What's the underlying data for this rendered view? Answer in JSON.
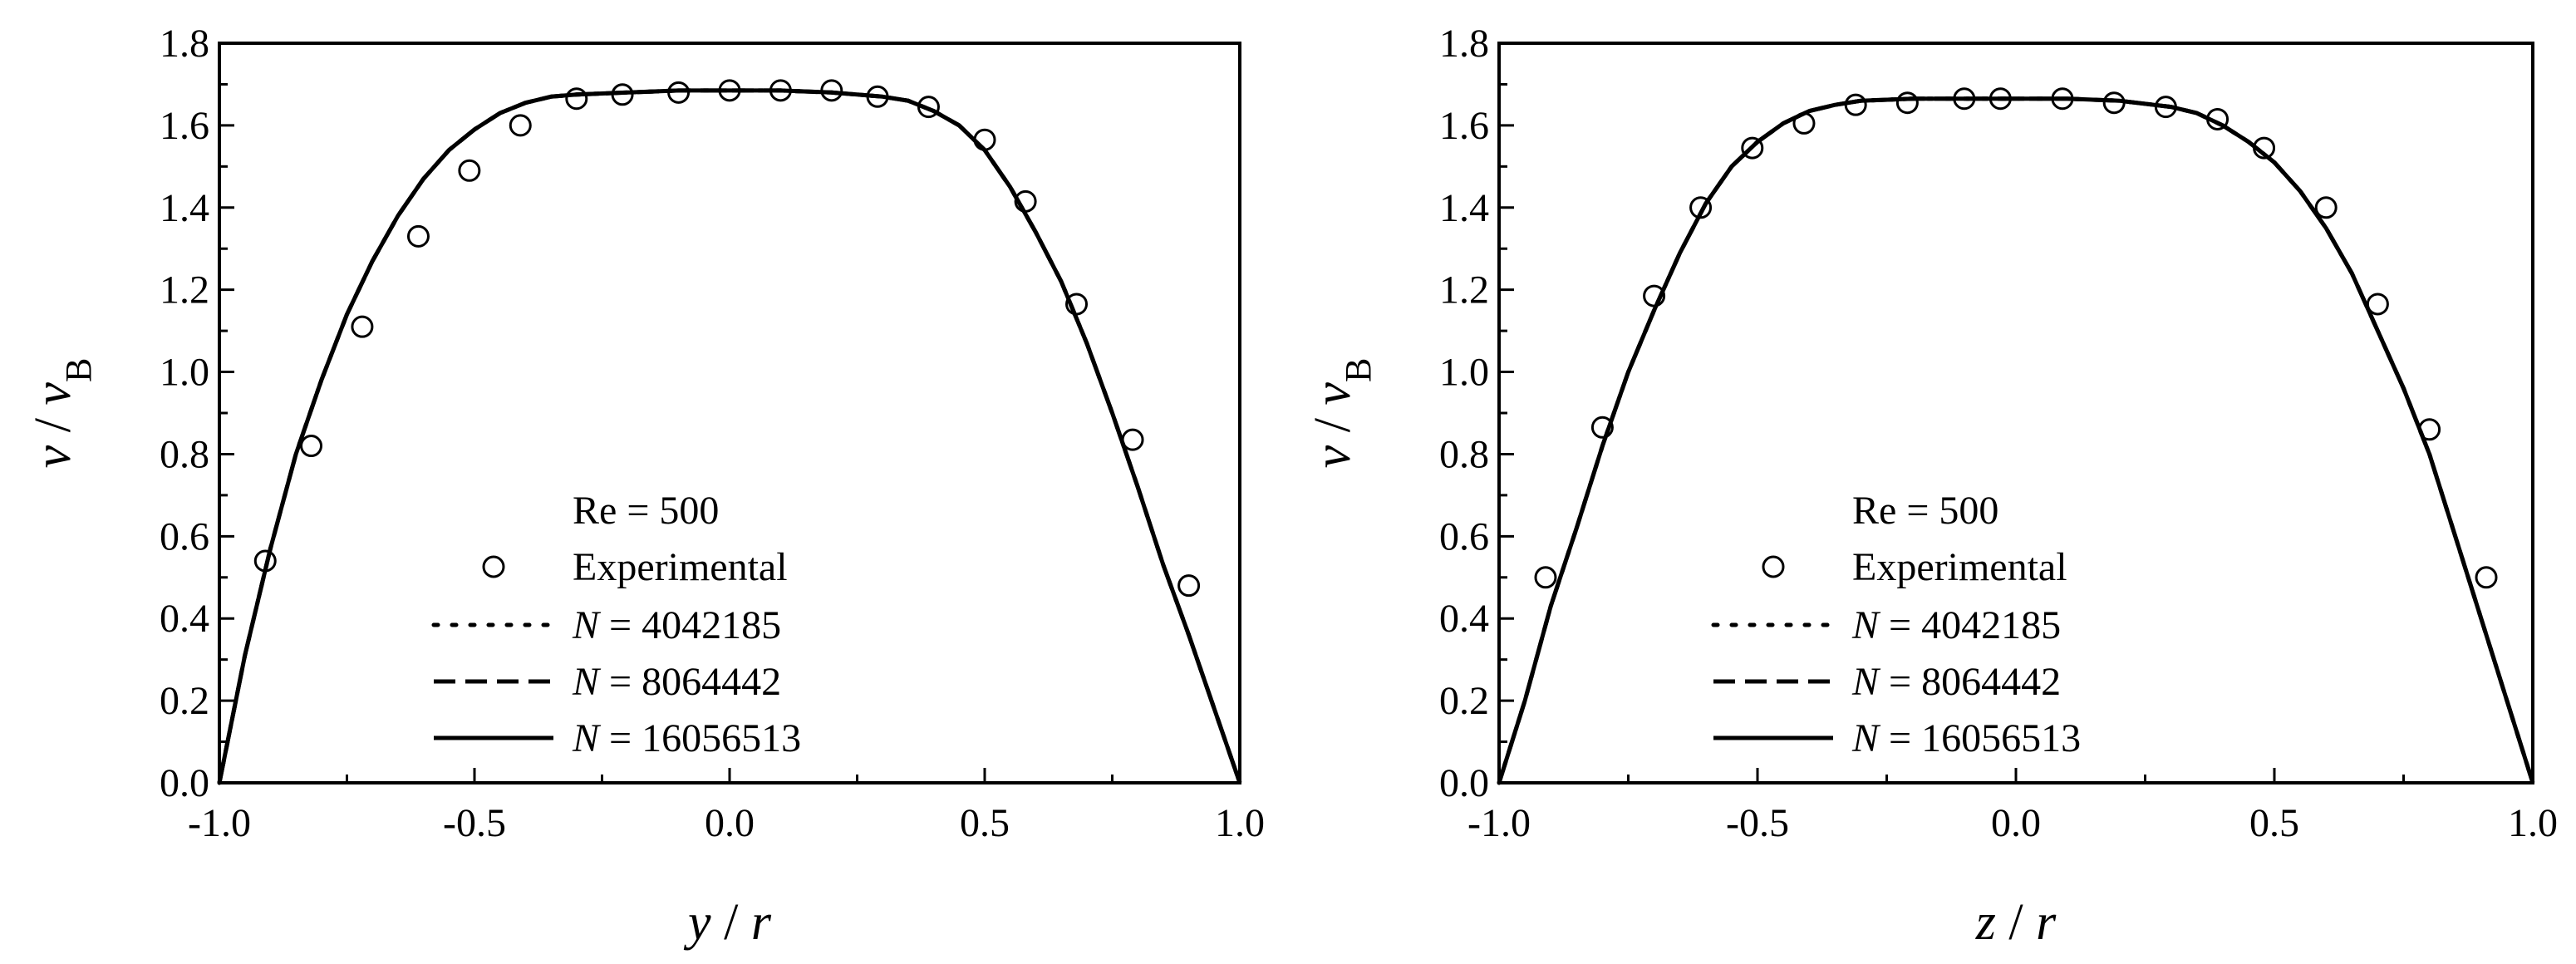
{
  "chart_data": [
    {
      "type": "line",
      "xlabel": {
        "var": "y",
        "sep": " / ",
        "unit": "r"
      },
      "ylabel": {
        "var": "v",
        "sep": " / ",
        "sub": "B",
        "full": "v / vB"
      },
      "xlim": [
        -1.0,
        1.0
      ],
      "ylim": [
        0.0,
        1.8
      ],
      "x_ticks": [
        "-1.0",
        "-0.5",
        "0.0",
        "0.5",
        "1.0"
      ],
      "y_ticks": [
        "0.0",
        "0.2",
        "0.4",
        "0.6",
        "0.8",
        "1.0",
        "1.2",
        "1.4",
        "1.6",
        "1.8"
      ],
      "grid": false,
      "legend_placement": "lower-center",
      "legend_title": "Re = 500",
      "series": [
        {
          "name": "Experimental",
          "style": "open-circle-markers",
          "x": [
            -0.91,
            -0.82,
            -0.72,
            -0.61,
            -0.51,
            -0.41,
            -0.3,
            -0.21,
            -0.1,
            0.0,
            0.1,
            0.2,
            0.29,
            0.39,
            0.5,
            0.58,
            0.68,
            0.79,
            0.9
          ],
          "y": [
            0.54,
            0.82,
            1.11,
            1.33,
            1.49,
            1.6,
            1.665,
            1.675,
            1.68,
            1.685,
            1.685,
            1.685,
            1.67,
            1.645,
            1.565,
            1.415,
            1.165,
            0.835,
            0.48
          ]
        },
        {
          "name": "N = 4042185",
          "name_var": "N",
          "name_rest": " = 4042185",
          "style": "dotted",
          "x": [
            -1.0,
            -0.95,
            -0.9,
            -0.85,
            -0.8,
            -0.75,
            -0.7,
            -0.65,
            -0.6,
            -0.55,
            -0.5,
            -0.45,
            -0.4,
            -0.35,
            -0.3,
            -0.2,
            -0.1,
            0.0,
            0.1,
            0.2,
            0.3,
            0.35,
            0.4,
            0.45,
            0.5,
            0.55,
            0.6,
            0.65,
            0.7,
            0.75,
            0.8,
            0.85,
            0.9,
            0.95,
            1.0
          ],
          "y": [
            0.0,
            0.31,
            0.57,
            0.8,
            0.98,
            1.14,
            1.27,
            1.38,
            1.47,
            1.54,
            1.59,
            1.63,
            1.655,
            1.67,
            1.675,
            1.68,
            1.685,
            1.685,
            1.685,
            1.68,
            1.67,
            1.66,
            1.635,
            1.6,
            1.54,
            1.45,
            1.34,
            1.22,
            1.07,
            0.9,
            0.72,
            0.53,
            0.36,
            0.18,
            0.0
          ]
        },
        {
          "name": "N = 8064442",
          "name_var": "N",
          "name_rest": " = 8064442",
          "style": "dashed",
          "x": [
            -1.0,
            -0.95,
            -0.9,
            -0.85,
            -0.8,
            -0.75,
            -0.7,
            -0.65,
            -0.6,
            -0.55,
            -0.5,
            -0.45,
            -0.4,
            -0.35,
            -0.3,
            -0.2,
            -0.1,
            0.0,
            0.1,
            0.2,
            0.3,
            0.35,
            0.4,
            0.45,
            0.5,
            0.55,
            0.6,
            0.65,
            0.7,
            0.75,
            0.8,
            0.85,
            0.9,
            0.95,
            1.0
          ],
          "y": [
            0.0,
            0.31,
            0.57,
            0.8,
            0.98,
            1.14,
            1.27,
            1.38,
            1.47,
            1.54,
            1.59,
            1.63,
            1.655,
            1.67,
            1.675,
            1.68,
            1.685,
            1.685,
            1.685,
            1.68,
            1.67,
            1.66,
            1.635,
            1.6,
            1.54,
            1.45,
            1.34,
            1.22,
            1.07,
            0.9,
            0.72,
            0.53,
            0.36,
            0.18,
            0.0
          ]
        },
        {
          "name": "N = 16056513",
          "name_var": "N",
          "name_rest": " = 16056513",
          "style": "solid",
          "x": [
            -1.0,
            -0.95,
            -0.9,
            -0.85,
            -0.8,
            -0.75,
            -0.7,
            -0.65,
            -0.6,
            -0.55,
            -0.5,
            -0.45,
            -0.4,
            -0.35,
            -0.3,
            -0.2,
            -0.1,
            0.0,
            0.1,
            0.2,
            0.3,
            0.35,
            0.4,
            0.45,
            0.5,
            0.55,
            0.6,
            0.65,
            0.7,
            0.75,
            0.8,
            0.85,
            0.9,
            0.95,
            1.0
          ],
          "y": [
            0.0,
            0.31,
            0.57,
            0.8,
            0.98,
            1.14,
            1.27,
            1.38,
            1.47,
            1.54,
            1.59,
            1.63,
            1.655,
            1.67,
            1.675,
            1.68,
            1.685,
            1.685,
            1.685,
            1.68,
            1.67,
            1.66,
            1.635,
            1.6,
            1.54,
            1.45,
            1.34,
            1.22,
            1.07,
            0.9,
            0.72,
            0.53,
            0.36,
            0.18,
            0.0
          ]
        }
      ]
    },
    {
      "type": "line",
      "xlabel": {
        "var": "z",
        "sep": " / ",
        "unit": "r"
      },
      "ylabel": {
        "var": "v",
        "sep": " / ",
        "sub": "B",
        "full": "v / vB"
      },
      "xlim": [
        -1.0,
        1.0
      ],
      "ylim": [
        0.0,
        1.8
      ],
      "x_ticks": [
        "-1.0",
        "-0.5",
        "0.0",
        "0.5",
        "1.0"
      ],
      "y_ticks": [
        "0.0",
        "0.2",
        "0.4",
        "0.6",
        "0.8",
        "1.0",
        "1.2",
        "1.4",
        "1.6",
        "1.8"
      ],
      "grid": false,
      "legend_placement": "lower-center",
      "legend_title": "Re = 500",
      "series": [
        {
          "name": "Experimental",
          "style": "open-circle-markers",
          "x": [
            -0.91,
            -0.8,
            -0.7,
            -0.61,
            -0.51,
            -0.41,
            -0.31,
            -0.21,
            -0.1,
            -0.03,
            0.09,
            0.19,
            0.29,
            0.39,
            0.48,
            0.6,
            0.7,
            0.8,
            0.91
          ],
          "y": [
            0.5,
            0.865,
            1.185,
            1.4,
            1.545,
            1.605,
            1.65,
            1.655,
            1.665,
            1.665,
            1.665,
            1.655,
            1.645,
            1.615,
            1.545,
            1.4,
            1.165,
            0.86,
            0.5
          ]
        },
        {
          "name": "N = 4042185",
          "name_var": "N",
          "name_rest": " = 4042185",
          "style": "dotted",
          "x": [
            -1.0,
            -0.95,
            -0.9,
            -0.85,
            -0.8,
            -0.75,
            -0.7,
            -0.65,
            -0.6,
            -0.55,
            -0.5,
            -0.45,
            -0.4,
            -0.35,
            -0.3,
            -0.2,
            -0.1,
            0.0,
            0.1,
            0.2,
            0.3,
            0.35,
            0.4,
            0.45,
            0.5,
            0.55,
            0.6,
            0.65,
            0.7,
            0.75,
            0.8,
            0.85,
            0.9,
            0.95,
            1.0
          ],
          "y": [
            0.0,
            0.2,
            0.43,
            0.62,
            0.82,
            1.0,
            1.15,
            1.29,
            1.41,
            1.5,
            1.56,
            1.605,
            1.635,
            1.65,
            1.66,
            1.665,
            1.665,
            1.665,
            1.665,
            1.66,
            1.645,
            1.63,
            1.6,
            1.56,
            1.51,
            1.44,
            1.35,
            1.24,
            1.1,
            0.96,
            0.8,
            0.6,
            0.4,
            0.2,
            0.0
          ]
        },
        {
          "name": "N = 8064442",
          "name_var": "N",
          "name_rest": " = 8064442",
          "style": "dashed",
          "x": [
            -1.0,
            -0.95,
            -0.9,
            -0.85,
            -0.8,
            -0.75,
            -0.7,
            -0.65,
            -0.6,
            -0.55,
            -0.5,
            -0.45,
            -0.4,
            -0.35,
            -0.3,
            -0.2,
            -0.1,
            0.0,
            0.1,
            0.2,
            0.3,
            0.35,
            0.4,
            0.45,
            0.5,
            0.55,
            0.6,
            0.65,
            0.7,
            0.75,
            0.8,
            0.85,
            0.9,
            0.95,
            1.0
          ],
          "y": [
            0.0,
            0.2,
            0.43,
            0.62,
            0.82,
            1.0,
            1.15,
            1.29,
            1.41,
            1.5,
            1.56,
            1.605,
            1.635,
            1.65,
            1.66,
            1.665,
            1.665,
            1.665,
            1.665,
            1.66,
            1.645,
            1.63,
            1.6,
            1.56,
            1.51,
            1.44,
            1.35,
            1.24,
            1.1,
            0.96,
            0.8,
            0.6,
            0.4,
            0.2,
            0.0
          ]
        },
        {
          "name": "N = 16056513",
          "name_var": "N",
          "name_rest": " = 16056513",
          "style": "solid",
          "x": [
            -1.0,
            -0.95,
            -0.9,
            -0.85,
            -0.8,
            -0.75,
            -0.7,
            -0.65,
            -0.6,
            -0.55,
            -0.5,
            -0.45,
            -0.4,
            -0.35,
            -0.3,
            -0.2,
            -0.1,
            0.0,
            0.1,
            0.2,
            0.3,
            0.35,
            0.4,
            0.45,
            0.5,
            0.55,
            0.6,
            0.65,
            0.7,
            0.75,
            0.8,
            0.85,
            0.9,
            0.95,
            1.0
          ],
          "y": [
            0.0,
            0.2,
            0.43,
            0.62,
            0.82,
            1.0,
            1.15,
            1.29,
            1.41,
            1.5,
            1.56,
            1.605,
            1.635,
            1.65,
            1.66,
            1.665,
            1.665,
            1.665,
            1.665,
            1.66,
            1.645,
            1.63,
            1.6,
            1.56,
            1.51,
            1.44,
            1.35,
            1.24,
            1.1,
            0.96,
            0.8,
            0.6,
            0.4,
            0.2,
            0.0
          ]
        }
      ]
    }
  ]
}
